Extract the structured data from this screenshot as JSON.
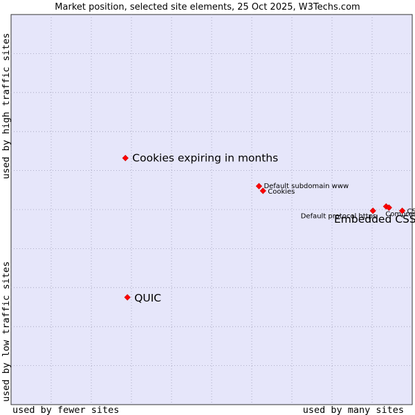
{
  "chart_data": {
    "type": "scatter",
    "title": "Market position, selected site elements, 25 Oct 2025, W3Techs.com",
    "xlabel_left": "used by fewer sites",
    "xlabel_right": "used by many sites",
    "ylabel_top": "used by high traffic sites",
    "ylabel_bottom": "used by low traffic sites",
    "xlim": [
      0,
      1
    ],
    "ylim": [
      0,
      1
    ],
    "grid": true,
    "colors": {
      "background": "#e6e6fa",
      "marker": "#ff0000",
      "grid": "#9a9ab4",
      "frame": "#333333"
    },
    "points": [
      {
        "label": "Cookies expiring in months",
        "x": 0.285,
        "y": 0.632,
        "size": "large"
      },
      {
        "label": "QUIC",
        "x": 0.29,
        "y": 0.275,
        "size": "large"
      },
      {
        "label": "Default subdomain www",
        "x": 0.618,
        "y": 0.56,
        "size": "small"
      },
      {
        "label": "Cookies",
        "x": 0.628,
        "y": 0.548,
        "size": "small"
      },
      {
        "label": "Default protocol https",
        "x": 0.902,
        "y": 0.497,
        "size": "small"
      },
      {
        "label": "Compression",
        "x": 0.935,
        "y": 0.508,
        "size": "small"
      },
      {
        "label": "Embedded CSS",
        "x": 0.942,
        "y": 0.505,
        "size": "large"
      },
      {
        "label": "CSS",
        "x": 0.975,
        "y": 0.497,
        "size": "small"
      }
    ]
  }
}
